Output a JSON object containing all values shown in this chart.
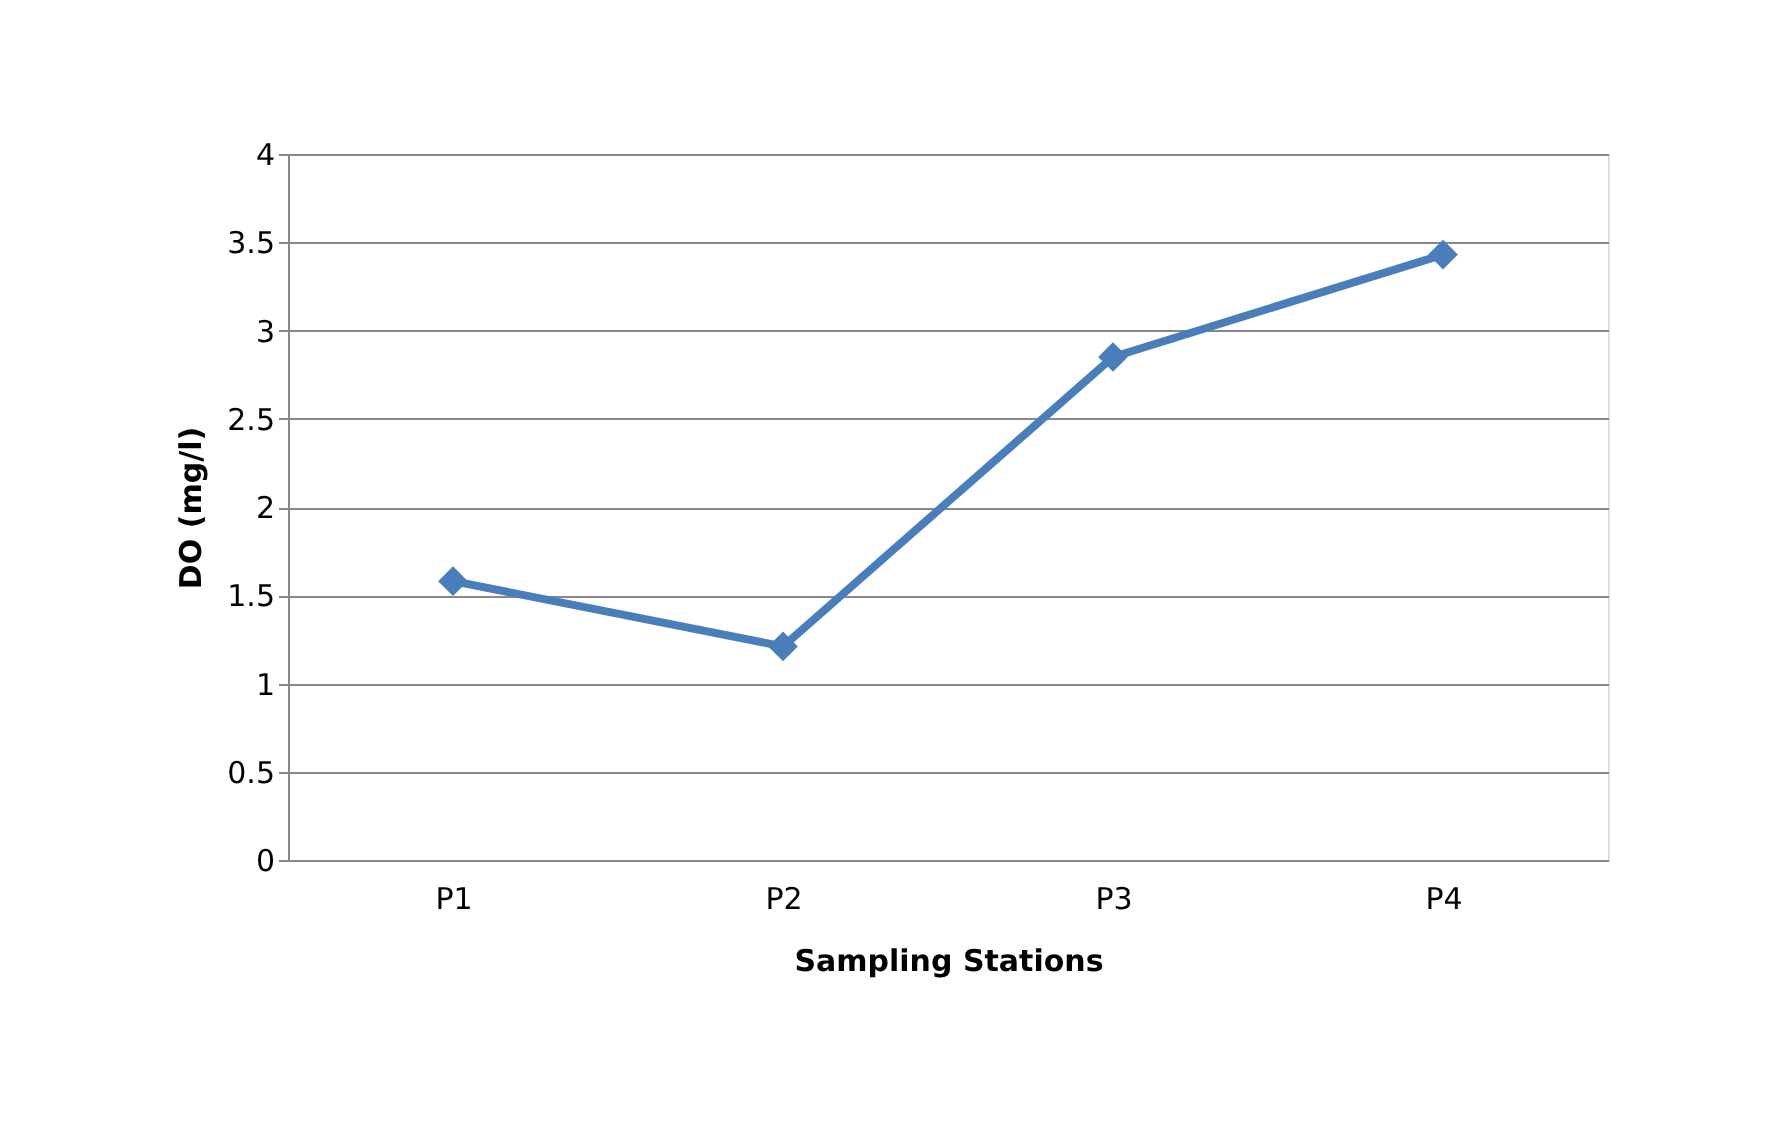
{
  "chart_data": {
    "type": "line",
    "xlabel": "Sampling Stations",
    "ylabel": "DO (mg/l)",
    "categories": [
      "P1",
      "P2",
      "P3",
      "P4"
    ],
    "series": [
      {
        "color": "#4a7ebb",
        "values": [
          1.58,
          1.21,
          2.85,
          3.43
        ]
      }
    ],
    "ylim": [
      0,
      4
    ],
    "yticks": [
      0,
      0.5,
      1,
      1.5,
      2,
      2.5,
      3,
      3.5,
      4
    ],
    "grid": "y",
    "marker": "diamond",
    "line_style": "solid"
  }
}
